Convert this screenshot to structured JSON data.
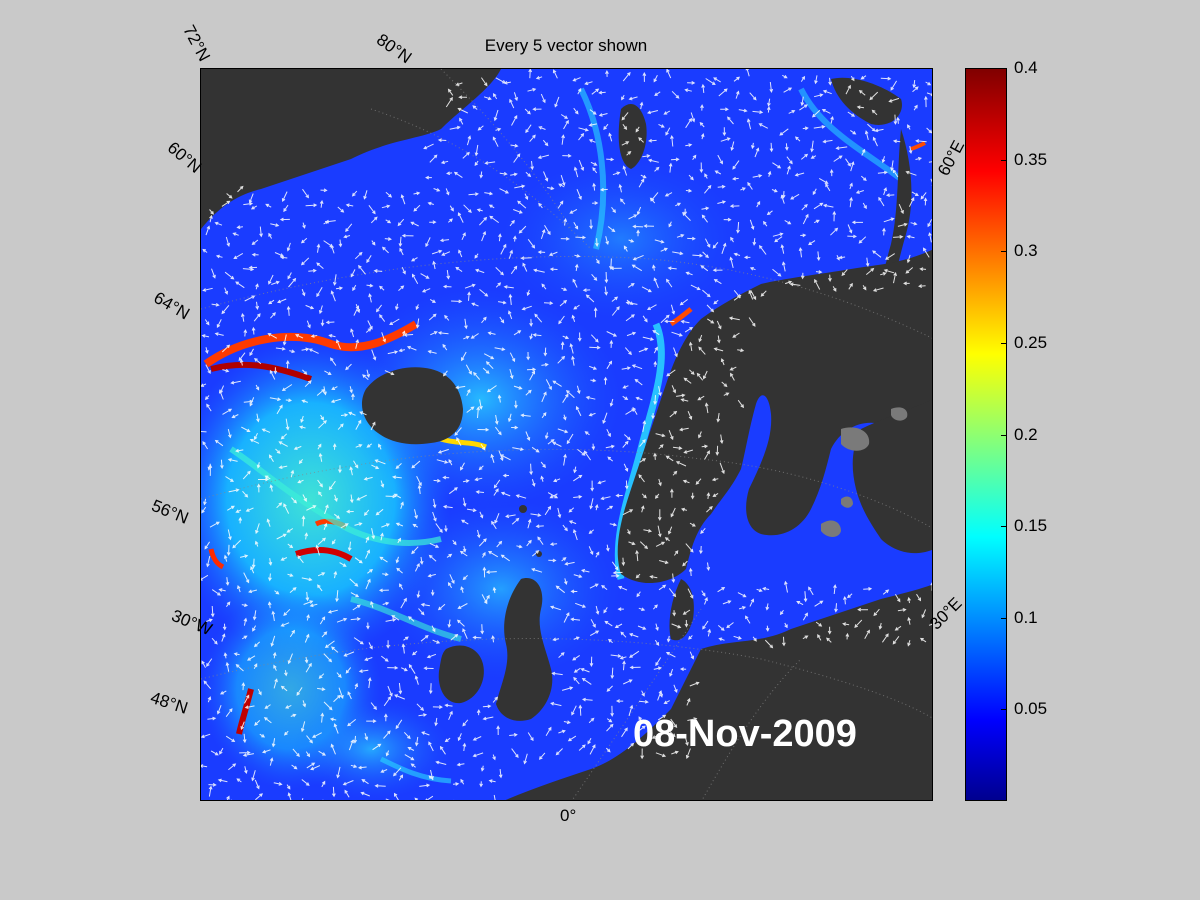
{
  "title": "Every 5 vector shown",
  "date": "08-Nov-2009",
  "graticule_labels": {
    "lat_72": "72°N",
    "lat_80": "80°N",
    "lat_60": "60°N",
    "lat_64": "64°N",
    "lat_56": "56°N",
    "lat_48": "48°N",
    "lon_30w": "30°W",
    "lon_0": "0°",
    "lon_30e": "30°E",
    "lon_60e": "60°E"
  },
  "colorbar": {
    "min": 0,
    "max": 0.4,
    "ticks": [
      "0.4",
      "0.35",
      "0.3",
      "0.25",
      "0.2",
      "0.15",
      "0.1",
      "0.05"
    ],
    "colormap": "jet"
  },
  "colors": {
    "background": "#c9c9c9",
    "land": "#333333",
    "ocean_low": "#1a3cff",
    "ocean_mid": "#19d6ff",
    "ocean_high": "#ff2a00"
  }
}
